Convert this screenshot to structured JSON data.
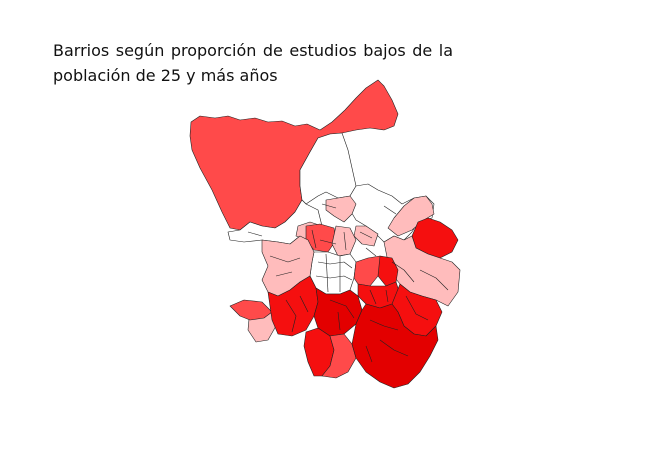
{
  "title": {
    "line1": "Barrios según proporción de estudios bajos de la",
    "line2": "población de 25 y más años"
  },
  "colors": {
    "class_1": "#ffffff",
    "class_2": "#ffbcbc",
    "class_3": "#ff4a4a",
    "class_4": "#f50f0f",
    "class_5": "#e30000"
  }
}
